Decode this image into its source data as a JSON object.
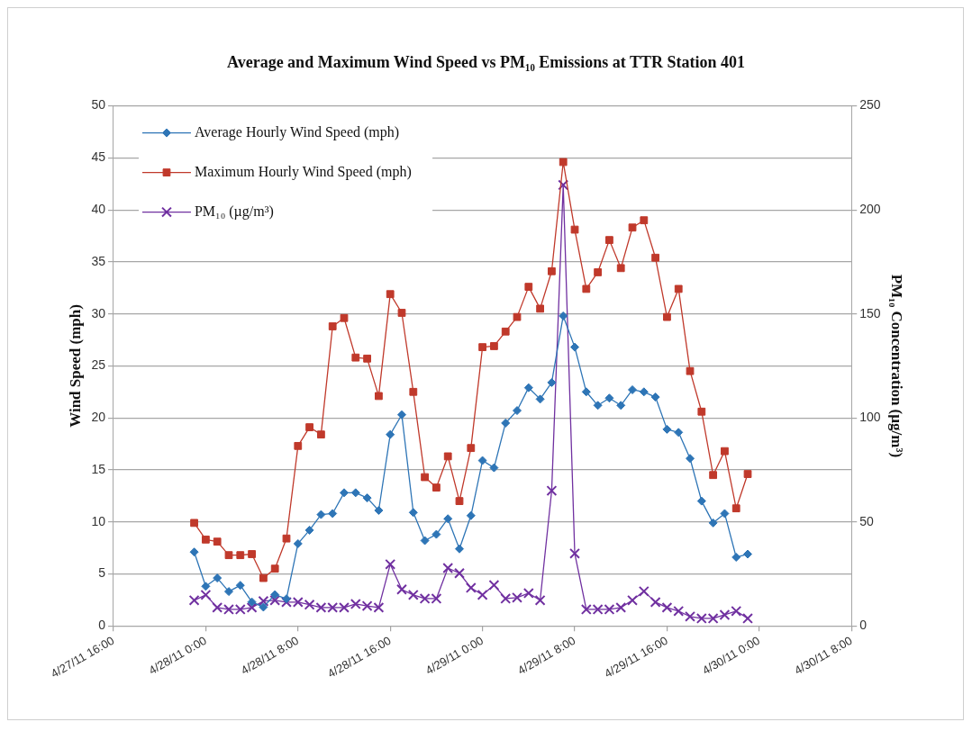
{
  "chart_data": {
    "type": "line",
    "title": "Average and Maximum Wind Speed vs PM₁₀ Emissions at TTR Station 401",
    "ylabel": "Wind Speed (mph)",
    "y2label": "PM₁₀ Concentration (µg/m³)",
    "x": [
      "--04-27T23:00",
      "--04-28T00:00",
      "--04-28T01:00",
      "--04-28T02:00",
      "--04-28T03:00",
      "--04-28T04:00",
      "--04-28T05:00",
      "--04-28T06:00",
      "--04-28T07:00",
      "--04-28T08:00",
      "--04-28T09:00",
      "--04-28T10:00",
      "--04-28T11:00",
      "--04-28T12:00",
      "--04-28T13:00",
      "--04-28T14:00",
      "--04-28T15:00",
      "--04-28T16:00",
      "--04-28T17:00",
      "--04-28T18:00",
      "--04-28T19:00",
      "--04-28T20:00",
      "--04-28T21:00",
      "--04-28T22:00",
      "--04-28T23:00",
      "--04-29T00:00",
      "--04-29T01:00",
      "--04-29T02:00",
      "--04-29T03:00",
      "--04-29T04:00",
      "--04-29T05:00",
      "--04-29T06:00",
      "--04-29T07:00",
      "--04-29T08:00",
      "--04-29T09:00",
      "--04-29T10:00",
      "--04-29T11:00",
      "--04-29T12:00",
      "--04-29T13:00",
      "--04-29T14:00",
      "--04-29T15:00",
      "--04-29T16:00",
      "--04-29T17:00",
      "--04-29T18:00",
      "--04-29T19:00",
      "--04-29T20:00",
      "--04-29T21:00",
      "--04-29T22:00",
      "--04-29T23:00"
    ],
    "xlim": [
      "--04-27T16:00",
      "--04-30T08:00"
    ],
    "xticks": [
      {
        "value": "--04-27T16:00",
        "label": "4/27/11 16:00"
      },
      {
        "value": "--04-28T00:00",
        "label": "4/28/11 0:00"
      },
      {
        "value": "--04-28T08:00",
        "label": "4/28/11 8:00"
      },
      {
        "value": "--04-28T16:00",
        "label": "4/28/11 16:00"
      },
      {
        "value": "--04-29T00:00",
        "label": "4/29/11 0:00"
      },
      {
        "value": "--04-29T08:00",
        "label": "4/29/11 8:00"
      },
      {
        "value": "--04-29T16:00",
        "label": "4/29/11 16:00"
      },
      {
        "value": "--04-30T00:00",
        "label": "4/30/11 0:00"
      },
      {
        "value": "--04-30T08:00",
        "label": "4/30/11 8:00"
      }
    ],
    "ylim": [
      0,
      50
    ],
    "yticks": [
      0,
      5,
      10,
      15,
      20,
      25,
      30,
      35,
      40,
      45,
      50
    ],
    "y2lim": [
      0,
      250
    ],
    "y2ticks": [
      0,
      50,
      100,
      150,
      200,
      250
    ],
    "grid": "y",
    "legend": "top left",
    "series": [
      {
        "name": "Average Hourly Wind Speed (mph)",
        "color": "#2e75b6",
        "marker": "diamond",
        "values": [
          7.1,
          3.8,
          4.6,
          3.3,
          3.9,
          2.3,
          1.8,
          3.0,
          2.6,
          7.9,
          9.2,
          10.7,
          10.8,
          12.8,
          12.8,
          12.3,
          11.1,
          18.4,
          20.3,
          10.9,
          8.2,
          8.8,
          10.3,
          7.4,
          10.6,
          15.9,
          15.2,
          19.5,
          20.7,
          22.9,
          21.8,
          23.4,
          29.8,
          26.8,
          22.5,
          21.2,
          21.9,
          21.2,
          22.7,
          22.5,
          22.0,
          18.9,
          18.6,
          16.1,
          12.0,
          9.9,
          10.8,
          6.6,
          6.9
        ]
      },
      {
        "name": "Maximum Hourly Wind Speed (mph)",
        "color": "#c0392b",
        "marker": "square",
        "values": [
          9.9,
          8.3,
          8.1,
          6.8,
          6.8,
          6.9,
          4.6,
          5.5,
          8.4,
          17.3,
          19.1,
          18.4,
          28.8,
          29.6,
          25.8,
          25.7,
          22.1,
          31.9,
          30.1,
          22.5,
          14.3,
          13.3,
          16.3,
          12.0,
          17.1,
          26.8,
          26.9,
          28.3,
          29.7,
          32.6,
          30.5,
          34.1,
          44.6,
          38.1,
          32.4,
          34.0,
          37.1,
          34.4,
          38.3,
          39.0,
          35.4,
          29.7,
          32.4,
          24.5,
          20.6,
          14.5,
          16.8,
          11.3,
          14.6
        ]
      },
      {
        "name": "PM₁₀ (µg/m³)",
        "color": "#7030a0",
        "marker": "cross",
        "axis": "y2",
        "values": [
          12.3,
          14.9,
          8.8,
          7.9,
          7.9,
          8.8,
          11.9,
          12.3,
          11.4,
          11.4,
          10.2,
          8.8,
          8.8,
          8.8,
          10.5,
          9.6,
          8.8,
          29.6,
          17.5,
          14.9,
          13.1,
          13.1,
          27.8,
          25.3,
          18.3,
          14.9,
          19.6,
          13.1,
          13.6,
          15.7,
          12.3,
          65.0,
          212,
          34.8,
          7.9,
          7.9,
          7.9,
          8.8,
          12.3,
          16.6,
          11.4,
          8.8,
          7.1,
          4.5,
          3.6,
          3.6,
          5.3,
          7.1,
          3.6
        ]
      }
    ]
  }
}
